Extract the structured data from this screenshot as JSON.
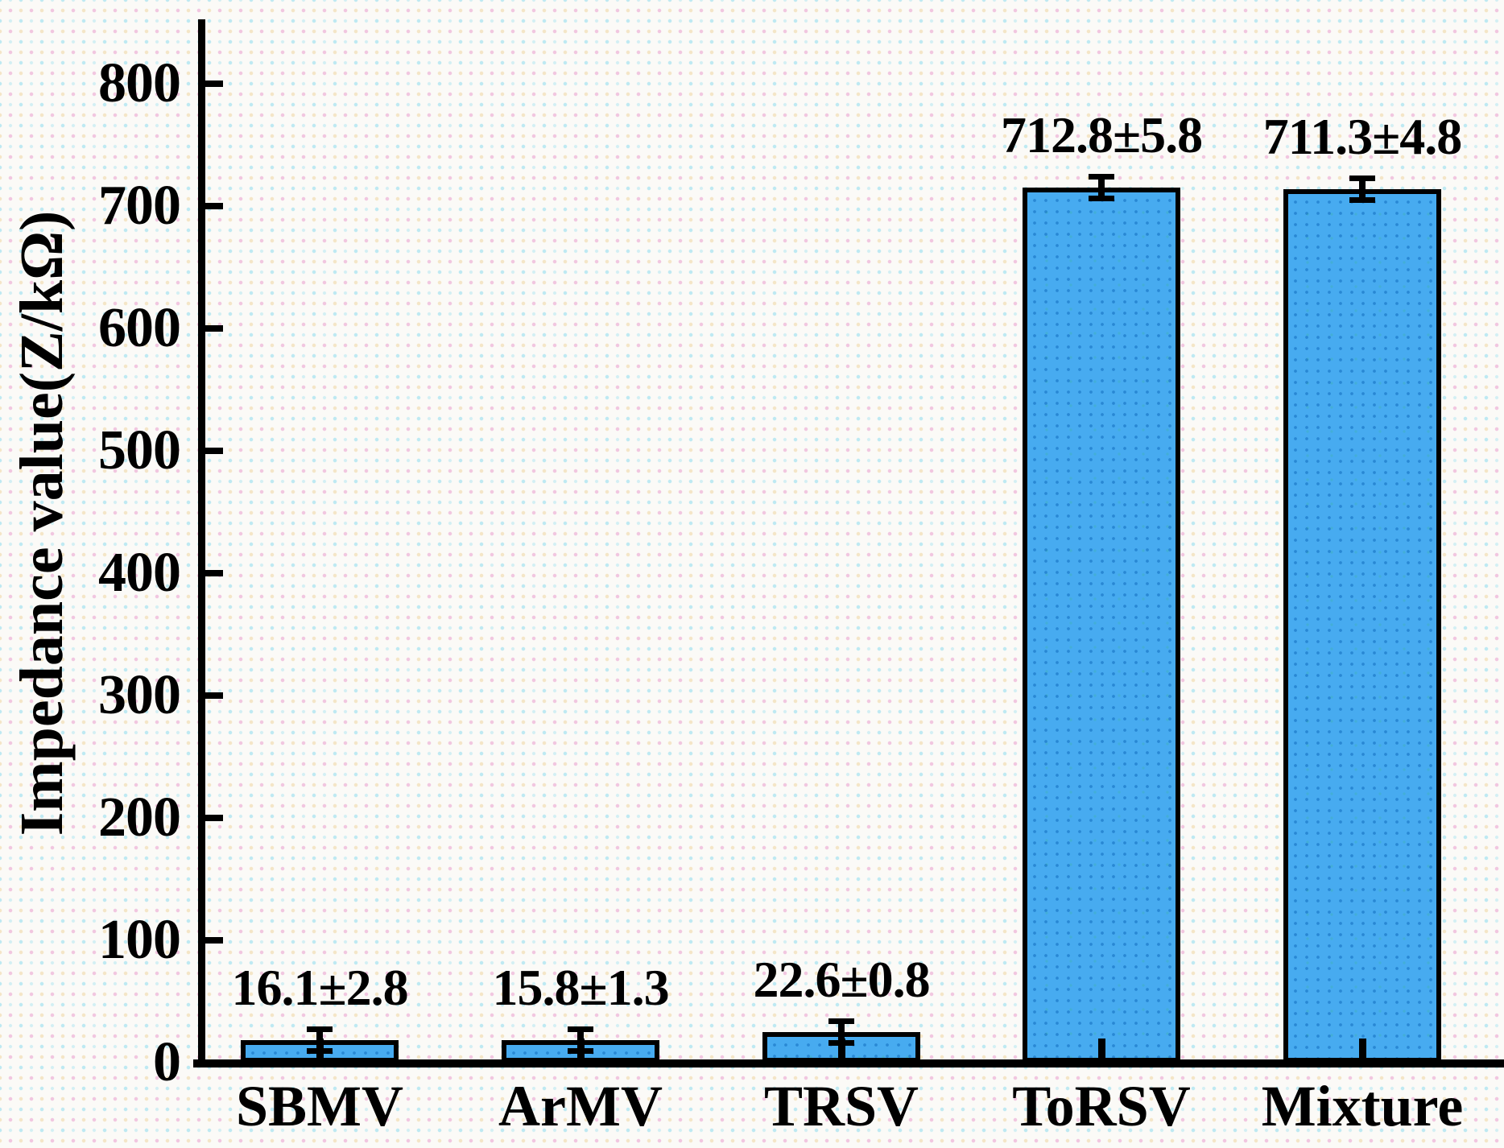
{
  "chart_data": {
    "type": "bar",
    "title": "",
    "xlabel": "",
    "ylabel": "Impedance value(Z/kΩ)",
    "categories": [
      "SBMV",
      "ArMV",
      "TRSV",
      "ToRSV",
      "Mixture"
    ],
    "values": [
      16.1,
      15.8,
      22.6,
      712.8,
      711.3
    ],
    "errors": [
      2.8,
      1.3,
      0.8,
      5.8,
      4.8
    ],
    "bar_labels": [
      "16.1±2.8",
      "15.8±1.3",
      "22.6±0.8",
      "712.8±5.8",
      "711.3±4.8"
    ],
    "yticks": [
      0,
      100,
      200,
      300,
      400,
      500,
      600,
      700,
      800
    ],
    "ylim": [
      0,
      850
    ],
    "grid": false,
    "legend_position": "none",
    "bar_fill_color": "#47abf0",
    "bar_border_color": "#000000",
    "axis_color": "#000000",
    "text_color": "#000000"
  }
}
